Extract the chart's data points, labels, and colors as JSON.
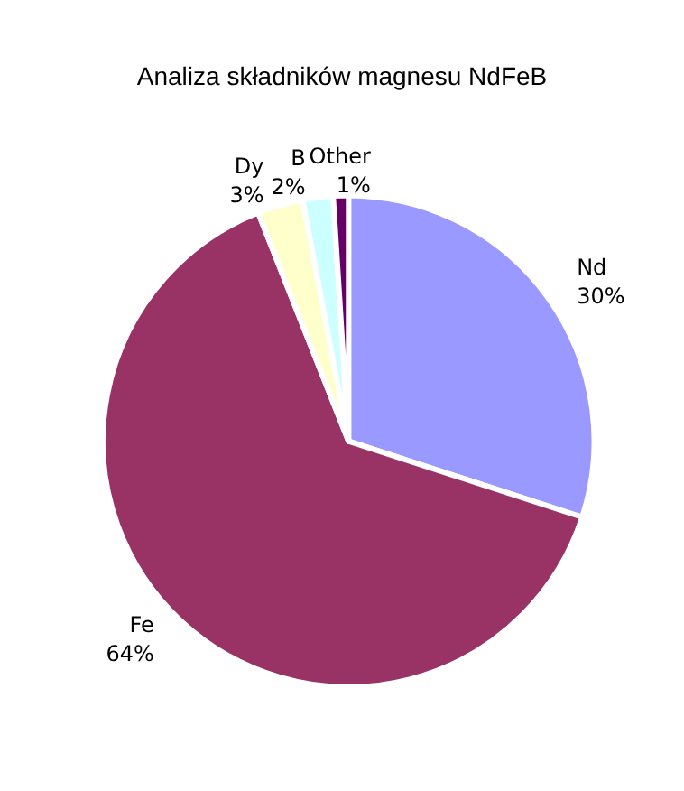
{
  "chart_data": {
    "type": "pie",
    "title": "Analiza składników magnesu NdFeB",
    "categories": [
      "Nd",
      "Fe",
      "Dy",
      "B",
      "Other"
    ],
    "values": [
      30,
      64,
      3,
      2,
      1
    ],
    "value_labels": [
      "30%",
      "64%",
      "3%",
      "2%",
      "1%"
    ],
    "colors": [
      "#9999ff",
      "#993366",
      "#ffffcc",
      "#ccffff",
      "#660066"
    ],
    "legend": false
  }
}
